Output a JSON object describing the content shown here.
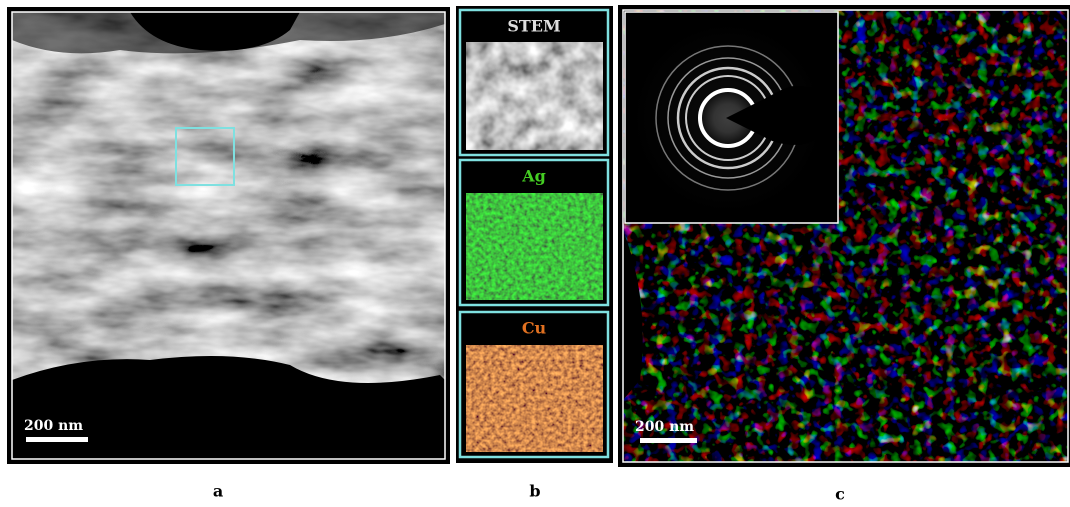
{
  "panels": {
    "a": {
      "scale_bar": "200 nm",
      "label": "a"
    },
    "b": {
      "maps": [
        "STEM",
        "Ag",
        "Cu"
      ],
      "label": "b"
    },
    "c": {
      "scale_bar": "200 nm",
      "label": "c"
    }
  }
}
